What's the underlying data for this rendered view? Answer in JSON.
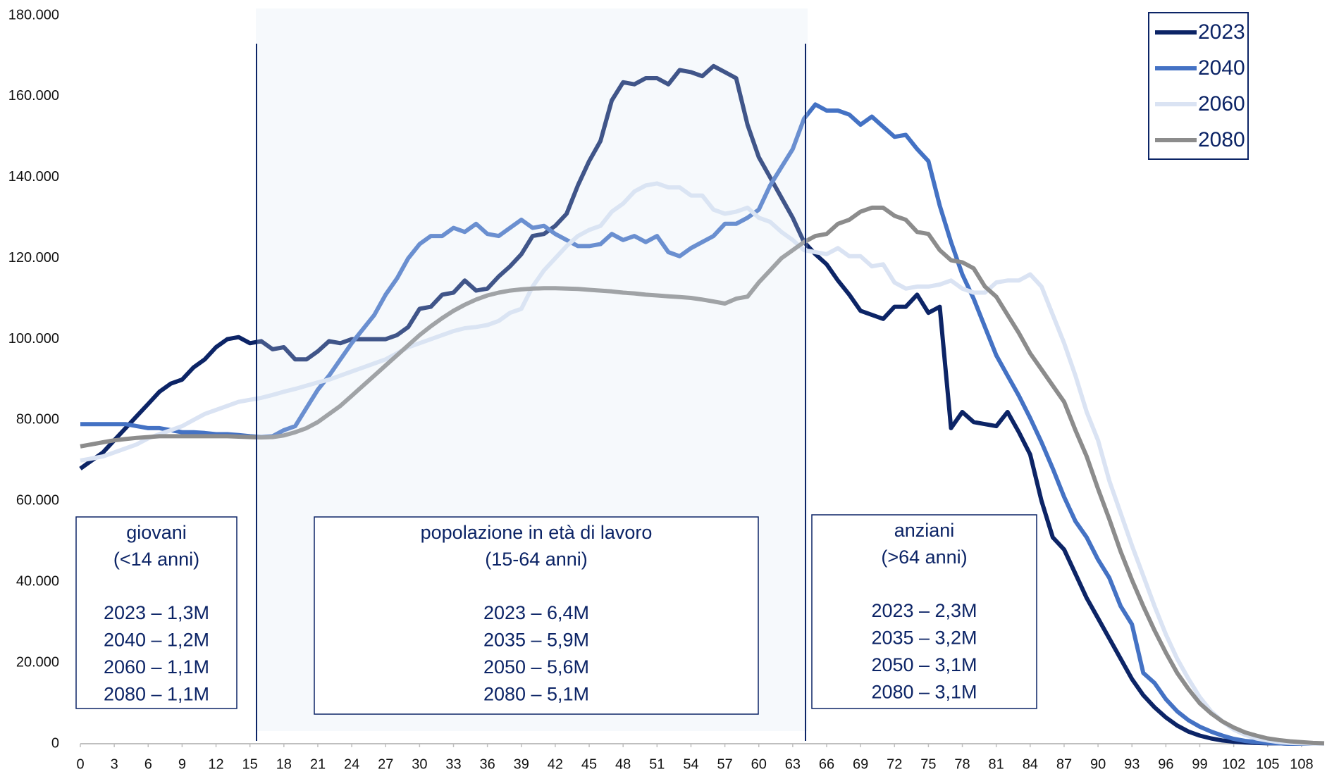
{
  "chart_data": {
    "type": "line",
    "x": [
      0,
      1,
      2,
      3,
      4,
      5,
      6,
      7,
      8,
      9,
      10,
      11,
      12,
      13,
      14,
      15,
      16,
      17,
      18,
      19,
      20,
      21,
      22,
      23,
      24,
      25,
      26,
      27,
      28,
      29,
      30,
      31,
      32,
      33,
      34,
      35,
      36,
      37,
      38,
      39,
      40,
      41,
      42,
      43,
      44,
      45,
      46,
      47,
      48,
      49,
      50,
      51,
      52,
      53,
      54,
      55,
      56,
      57,
      58,
      59,
      60,
      61,
      62,
      63,
      64,
      65,
      66,
      67,
      68,
      69,
      70,
      71,
      72,
      73,
      74,
      75,
      76,
      77,
      78,
      79,
      80,
      81,
      82,
      83,
      84,
      85,
      86,
      87,
      88,
      89,
      90,
      91,
      92,
      93,
      94,
      95,
      96,
      97,
      98,
      99,
      100,
      101,
      102,
      103,
      104,
      105,
      106,
      107,
      108,
      109,
      110
    ],
    "series": [
      {
        "name": "2023",
        "color": "#0c2466",
        "values": [
          68000,
          70000,
          72000,
          75000,
          78000,
          81000,
          84000,
          87000,
          89000,
          90000,
          93000,
          95000,
          98000,
          100000,
          100500,
          99000,
          99500,
          97500,
          98000,
          95000,
          95000,
          97000,
          99500,
          99000,
          100000,
          100000,
          100000,
          100000,
          101000,
          103000,
          107500,
          108000,
          111000,
          111500,
          114500,
          112000,
          112500,
          115500,
          118000,
          121000,
          125500,
          126000,
          128000,
          131000,
          138000,
          144000,
          149000,
          159000,
          163500,
          163000,
          164500,
          164500,
          163000,
          166500,
          166000,
          165000,
          167500,
          166000,
          164500,
          153000,
          145000,
          140000,
          135000,
          130000,
          124000,
          121000,
          118500,
          114500,
          111000,
          107000,
          106000,
          105000,
          108000,
          108000,
          111000,
          106500,
          108000,
          78000,
          82000,
          79500,
          79000,
          78500,
          82000,
          77000,
          71500,
          60000,
          51000,
          48000,
          42000,
          36000,
          31000,
          26000,
          21000,
          16000,
          12000,
          9000,
          6500,
          4500,
          3000,
          2000,
          1300,
          800,
          500,
          300,
          200,
          100,
          100,
          0,
          0,
          0,
          0
        ]
      },
      {
        "name": "2040",
        "color": "#4472c4",
        "values": [
          79000,
          79000,
          79000,
          79000,
          79000,
          78500,
          78000,
          78000,
          77500,
          77000,
          77000,
          76800,
          76500,
          76500,
          76300,
          76000,
          75800,
          76000,
          77500,
          78500,
          83000,
          87500,
          91000,
          95000,
          99000,
          102500,
          106000,
          111000,
          115000,
          120000,
          123500,
          125500,
          125500,
          127500,
          126500,
          128500,
          126000,
          125500,
          127500,
          129500,
          127500,
          128000,
          126000,
          124500,
          123000,
          123000,
          123500,
          126000,
          124500,
          125500,
          124000,
          125500,
          121500,
          120500,
          122500,
          124000,
          125500,
          128500,
          128500,
          130000,
          132000,
          138000,
          142500,
          147000,
          154500,
          158000,
          156500,
          156500,
          155500,
          153000,
          155000,
          152500,
          150000,
          150500,
          147000,
          144000,
          133000,
          124000,
          116000,
          110000,
          103000,
          96000,
          91000,
          86000,
          80500,
          74500,
          68000,
          61000,
          55000,
          51000,
          45500,
          41000,
          34000,
          29500,
          17500,
          15000,
          11000,
          8000,
          5800,
          4200,
          3000,
          2000,
          1200,
          700,
          400,
          200,
          100,
          0,
          0,
          0,
          0
        ]
      },
      {
        "name": "2060",
        "color": "#dae3f3",
        "values": [
          70000,
          70500,
          71000,
          72000,
          73000,
          74000,
          75500,
          76500,
          77500,
          78500,
          80000,
          81500,
          82500,
          83500,
          84500,
          85000,
          85500,
          86200,
          87000,
          87700,
          88500,
          89300,
          90000,
          91000,
          92000,
          93000,
          94000,
          95000,
          96500,
          98000,
          99000,
          100000,
          101000,
          102000,
          102700,
          103000,
          103500,
          104500,
          106500,
          107500,
          113000,
          117000,
          120000,
          123000,
          125500,
          127000,
          128000,
          131500,
          133500,
          136500,
          138000,
          138500,
          137500,
          137500,
          135500,
          135500,
          132000,
          131000,
          131500,
          132500,
          130000,
          129000,
          126500,
          124500,
          122000,
          121500,
          121000,
          122500,
          120500,
          120500,
          118000,
          118500,
          114000,
          112500,
          113000,
          113000,
          113500,
          114500,
          112500,
          111500,
          111500,
          114000,
          114500,
          114500,
          116000,
          113000,
          106000,
          99000,
          91000,
          82000,
          75000,
          65000,
          57000,
          49000,
          41500,
          34000,
          27000,
          21000,
          16000,
          11500,
          8000,
          5500,
          3500,
          2200,
          1300,
          800,
          400,
          200,
          100,
          0,
          0
        ]
      },
      {
        "name": "2080",
        "color": "#8c8c8c",
        "values": [
          73500,
          74000,
          74500,
          75000,
          75300,
          75600,
          75800,
          76000,
          76000,
          76000,
          76000,
          76000,
          76000,
          76000,
          75900,
          75800,
          75700,
          75800,
          76200,
          77000,
          78000,
          79500,
          81500,
          83500,
          86000,
          88500,
          91000,
          93500,
          96000,
          98500,
          101000,
          103200,
          105200,
          107000,
          108500,
          109800,
          110800,
          111500,
          112000,
          112300,
          112500,
          112600,
          112600,
          112500,
          112400,
          112200,
          112000,
          111800,
          111500,
          111300,
          111000,
          110800,
          110600,
          110400,
          110200,
          109800,
          109300,
          108800,
          110000,
          110500,
          114000,
          117000,
          120000,
          122000,
          124000,
          125500,
          126000,
          128500,
          129500,
          131500,
          132500,
          132500,
          130500,
          129500,
          126500,
          126000,
          122000,
          119500,
          119000,
          117500,
          113000,
          110500,
          106000,
          101500,
          96500,
          92500,
          88500,
          84500,
          77500,
          71000,
          63000,
          55500,
          47500,
          40500,
          34000,
          28000,
          22500,
          17500,
          13500,
          10000,
          7500,
          5500,
          4000,
          2800,
          2000,
          1300,
          900,
          600,
          400,
          200,
          100
        ]
      }
    ],
    "xlim": [
      0,
      110
    ],
    "xticks": [
      0,
      3,
      6,
      9,
      12,
      15,
      18,
      21,
      24,
      27,
      30,
      33,
      36,
      39,
      42,
      45,
      48,
      51,
      54,
      57,
      60,
      63,
      66,
      69,
      72,
      75,
      78,
      81,
      84,
      87,
      90,
      93,
      96,
      99,
      102,
      105,
      108
    ],
    "ylim": [
      0,
      180000
    ],
    "yticks": [
      0,
      {
        "value": 20000,
        "label": "20.000"
      },
      {
        "value": 40000,
        "label": "40.000"
      },
      {
        "value": 60000,
        "label": "60.000"
      },
      {
        "value": 80000,
        "label": "80.000"
      },
      {
        "value": 100000,
        "label": "100.000"
      },
      {
        "value": 120000,
        "label": "120.000"
      },
      {
        "value": 140000,
        "label": "140.000"
      },
      {
        "value": 160000,
        "label": "160.000"
      },
      {
        "value": 180000,
        "label": "180.000"
      }
    ],
    "grid": false,
    "legend": "top-right",
    "annotations": [
      {
        "title": "giovani",
        "subtitle": "(<14 anni)",
        "lines": [
          "2023 – 1,3M",
          "2040 – 1,2M",
          "2060 – 1,1M",
          "2080 – 1,1M"
        ]
      },
      {
        "title": "popolazione in età di lavoro",
        "subtitle": "(15-64 anni)",
        "lines": [
          "2023 – 6,4M",
          "2035 – 5,9M",
          "2050 – 5,6M",
          "2080 – 5,1M"
        ]
      },
      {
        "title": "anziani",
        "subtitle": "(>64 anni)",
        "lines": [
          "2023 – 2,3M",
          "2035 – 3,2M",
          "2050 – 3,1M",
          "2080 – 3,1M"
        ]
      }
    ]
  }
}
